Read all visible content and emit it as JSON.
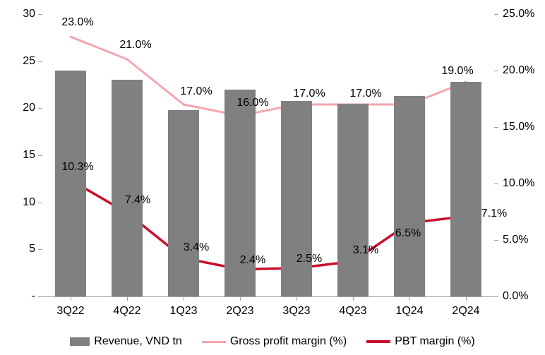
{
  "chart": {
    "type": "bar+line-dual-axis",
    "background_color": "#ffffff",
    "font_family": "Arial",
    "label_fontsize": 16,
    "categories": [
      "3Q22",
      "4Q22",
      "1Q23",
      "2Q23",
      "3Q23",
      "4Q23",
      "1Q24",
      "2Q24"
    ],
    "left_axis": {
      "min": 0,
      "max": 30,
      "step": 5,
      "ticks": [
        "-",
        "5",
        "10",
        "15",
        "20",
        "25",
        "30"
      ]
    },
    "right_axis": {
      "min": 0,
      "max": 25,
      "step": 5,
      "ticks": [
        "0.0%",
        "5.0%",
        "10.0%",
        "15.0%",
        "20.0%",
        "25.0%"
      ]
    },
    "bars": {
      "name": "Revenue, VND tn",
      "color": "#808080",
      "width_ratio": 0.55,
      "values": [
        24.0,
        23.0,
        19.8,
        22.0,
        20.8,
        20.5,
        21.3,
        22.8
      ]
    },
    "line1": {
      "name": "Gross profit margin (%)",
      "color": "#f2a7b0",
      "stroke_width": 3,
      "values": [
        23.0,
        21.0,
        17.0,
        16.0,
        17.0,
        17.0,
        17.0,
        19.0
      ],
      "labels": [
        "23.0%",
        "21.0%",
        "17.0%",
        "16.0%",
        "17.0%",
        "17.0%",
        "",
        "19.0%"
      ],
      "label_dy": [
        -20,
        -20,
        -18,
        -18,
        -15,
        -15,
        0,
        -15
      ],
      "label_dx": [
        10,
        12,
        18,
        18,
        18,
        18,
        0,
        -12
      ]
    },
    "line2": {
      "name": "PBT margin (%)",
      "color": "#c8102e",
      "stroke_width": 3.5,
      "values": [
        10.3,
        7.4,
        3.4,
        2.4,
        2.5,
        3.1,
        6.5,
        7.1
      ],
      "labels": [
        "10.3%",
        "7.4%",
        "3.4%",
        "2.4%",
        "2.5%",
        "3.1%",
        "6.5%",
        "7.1%"
      ],
      "label_dy": [
        -18,
        -18,
        -15,
        -13,
        -13,
        -15,
        15,
        -3
      ],
      "label_dx": [
        10,
        15,
        18,
        18,
        18,
        18,
        -2,
        40
      ]
    },
    "legend": {
      "items": [
        {
          "kind": "box",
          "colorRef": "bars",
          "labelRef": "bars"
        },
        {
          "kind": "line",
          "colorRef": "line1",
          "labelRef": "line1"
        },
        {
          "kind": "line",
          "colorRef": "line2",
          "labelRef": "line2"
        }
      ]
    }
  }
}
